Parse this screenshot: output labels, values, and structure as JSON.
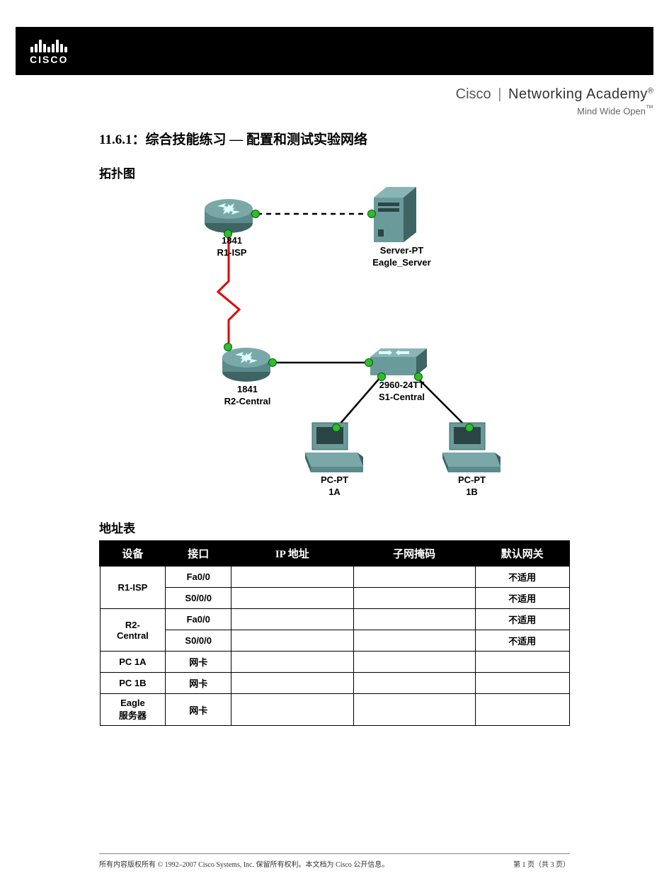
{
  "header": {
    "brand": "CISCO"
  },
  "academy": {
    "line1_a": "Cisco",
    "line1_b": "Networking Academy",
    "line2": "Mind Wide Open"
  },
  "doc": {
    "title": "11.6.1：综合技能练习 — 配置和测试实验网络",
    "topo_heading": "拓扑图",
    "table_heading": "地址表"
  },
  "topology": {
    "r1": {
      "model": "1841",
      "name": "R1-ISP"
    },
    "server": {
      "model": "Server-PT",
      "name": "Eagle_Server"
    },
    "r2": {
      "model": "1841",
      "name": "R2-Central"
    },
    "sw": {
      "model": "2960-24TT",
      "name": "S1-Central"
    },
    "pc_a": {
      "model": "PC-PT",
      "name": "1A"
    },
    "pc_b": {
      "model": "PC-PT",
      "name": "1B"
    },
    "colors": {
      "device_fill": "#5b8a8a",
      "device_dark": "#3e6464",
      "port_green": "#2dbd2d",
      "serial_red": "#e10000"
    }
  },
  "table": {
    "columns": [
      "设备",
      "接口",
      "IP 地址",
      "子网掩码",
      "默认网关"
    ],
    "col_widths_pct": [
      14,
      14,
      26,
      26,
      20
    ],
    "rows": [
      {
        "device": "R1-ISP",
        "iface": "Fa0/0",
        "ip": "",
        "mask": "",
        "gw": "不适用"
      },
      {
        "device": "",
        "iface": "S0/0/0",
        "ip": "",
        "mask": "",
        "gw": "不适用"
      },
      {
        "device": "R2-Central",
        "iface": "Fa0/0",
        "ip": "",
        "mask": "",
        "gw": "不适用"
      },
      {
        "device": "",
        "iface": "S0/0/0",
        "ip": "",
        "mask": "",
        "gw": "不适用"
      },
      {
        "device": "PC 1A",
        "iface": "网卡",
        "ip": "",
        "mask": "",
        "gw": ""
      },
      {
        "device": "PC 1B",
        "iface": "网卡",
        "ip": "",
        "mask": "",
        "gw": ""
      },
      {
        "device": "Eagle 服务器",
        "iface": "网卡",
        "ip": "",
        "mask": "",
        "gw": ""
      }
    ],
    "rowspans": [
      2,
      0,
      2,
      0,
      1,
      1,
      1
    ]
  },
  "footer": {
    "left": "所有内容版权所有 © 1992–2007 Cisco Systems, Inc. 保留所有权利。本文档为 Cisco 公开信息。",
    "right": "第 1 页（共 3 页）"
  }
}
